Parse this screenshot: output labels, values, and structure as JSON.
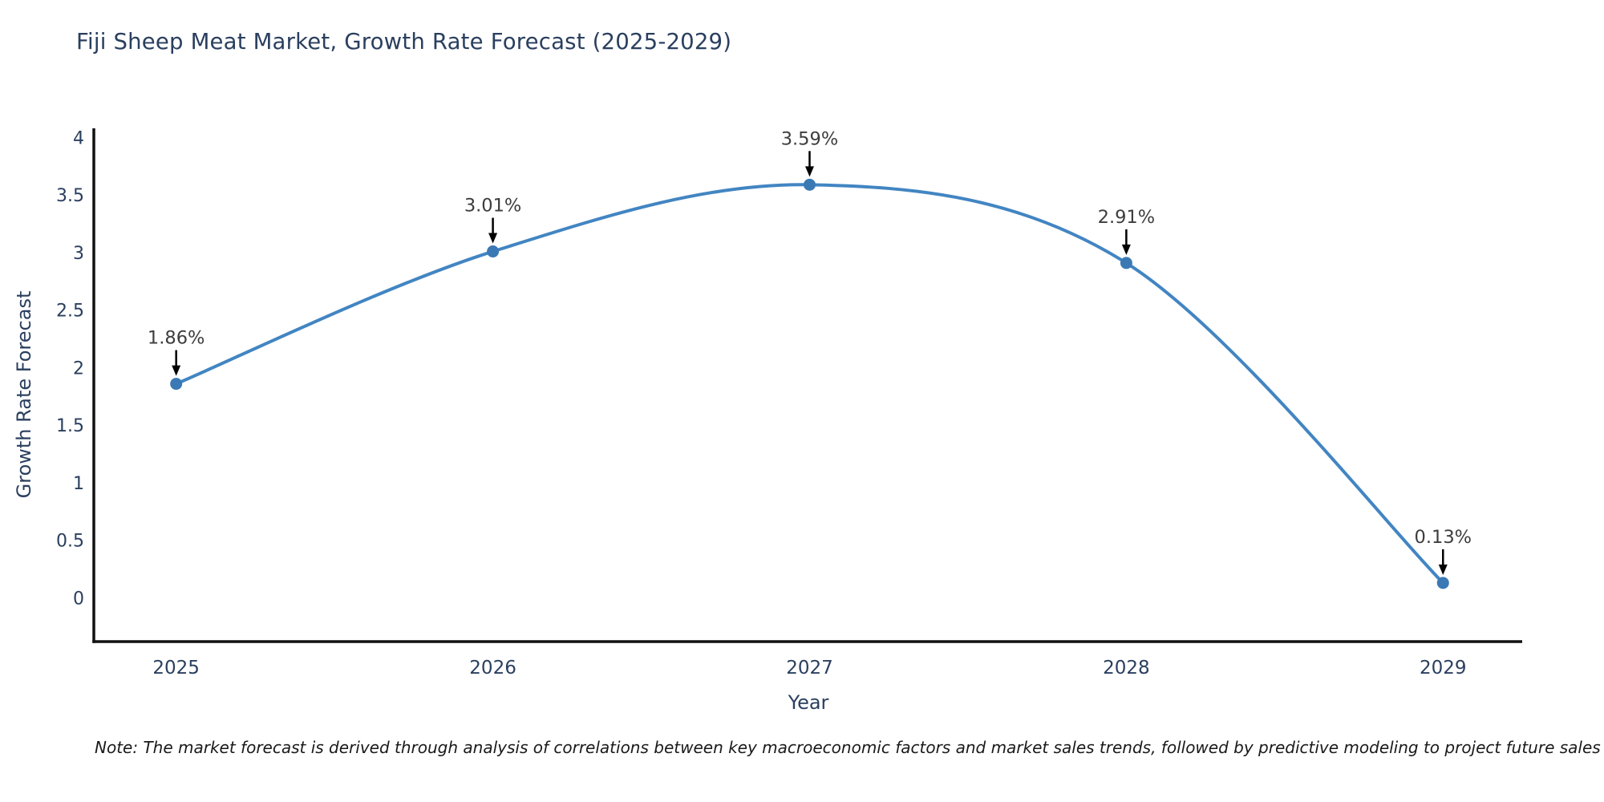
{
  "title": "Fiji Sheep Meat Market, Growth Rate Forecast (2025-2029)",
  "note": "Note: The market forecast is derived through analysis of correlations between key macroeconomic factors and market sales trends, followed by predictive modeling to project future sales",
  "chart_data": {
    "type": "line",
    "title": "Fiji Sheep Meat Market, Growth Rate Forecast (2025-2029)",
    "xlabel": "Year",
    "ylabel": "Growth Rate Forecast",
    "x": [
      2025,
      2026,
      2027,
      2028,
      2029
    ],
    "values": [
      1.86,
      3.01,
      3.59,
      2.91,
      0.13
    ],
    "point_labels": [
      "1.86%",
      "3.01%",
      "3.59%",
      "2.91%",
      "0.13%"
    ],
    "yticks": [
      0,
      0.5,
      1,
      1.5,
      2,
      2.5,
      3,
      3.5,
      4
    ],
    "ytick_labels": [
      "0",
      "0.5",
      "1",
      "1.5",
      "2",
      "2.5",
      "3",
      "3.5",
      "4"
    ],
    "xtick_labels": [
      "2025",
      "2026",
      "2027",
      "2028",
      "2029"
    ],
    "ylim": [
      -0.38,
      4.08
    ],
    "xlim": [
      2024.74,
      2029.25
    ],
    "grid": false,
    "legend": "none",
    "line_shape": "spline",
    "colors": {
      "line": "#4285c2",
      "marker": "#3b79b5",
      "axis": "#111111",
      "tick_text": "#2a3f5f",
      "annotation_text": "#3d3d3d",
      "arrow": "#000000",
      "title_text": "#2a3f5f"
    }
  }
}
